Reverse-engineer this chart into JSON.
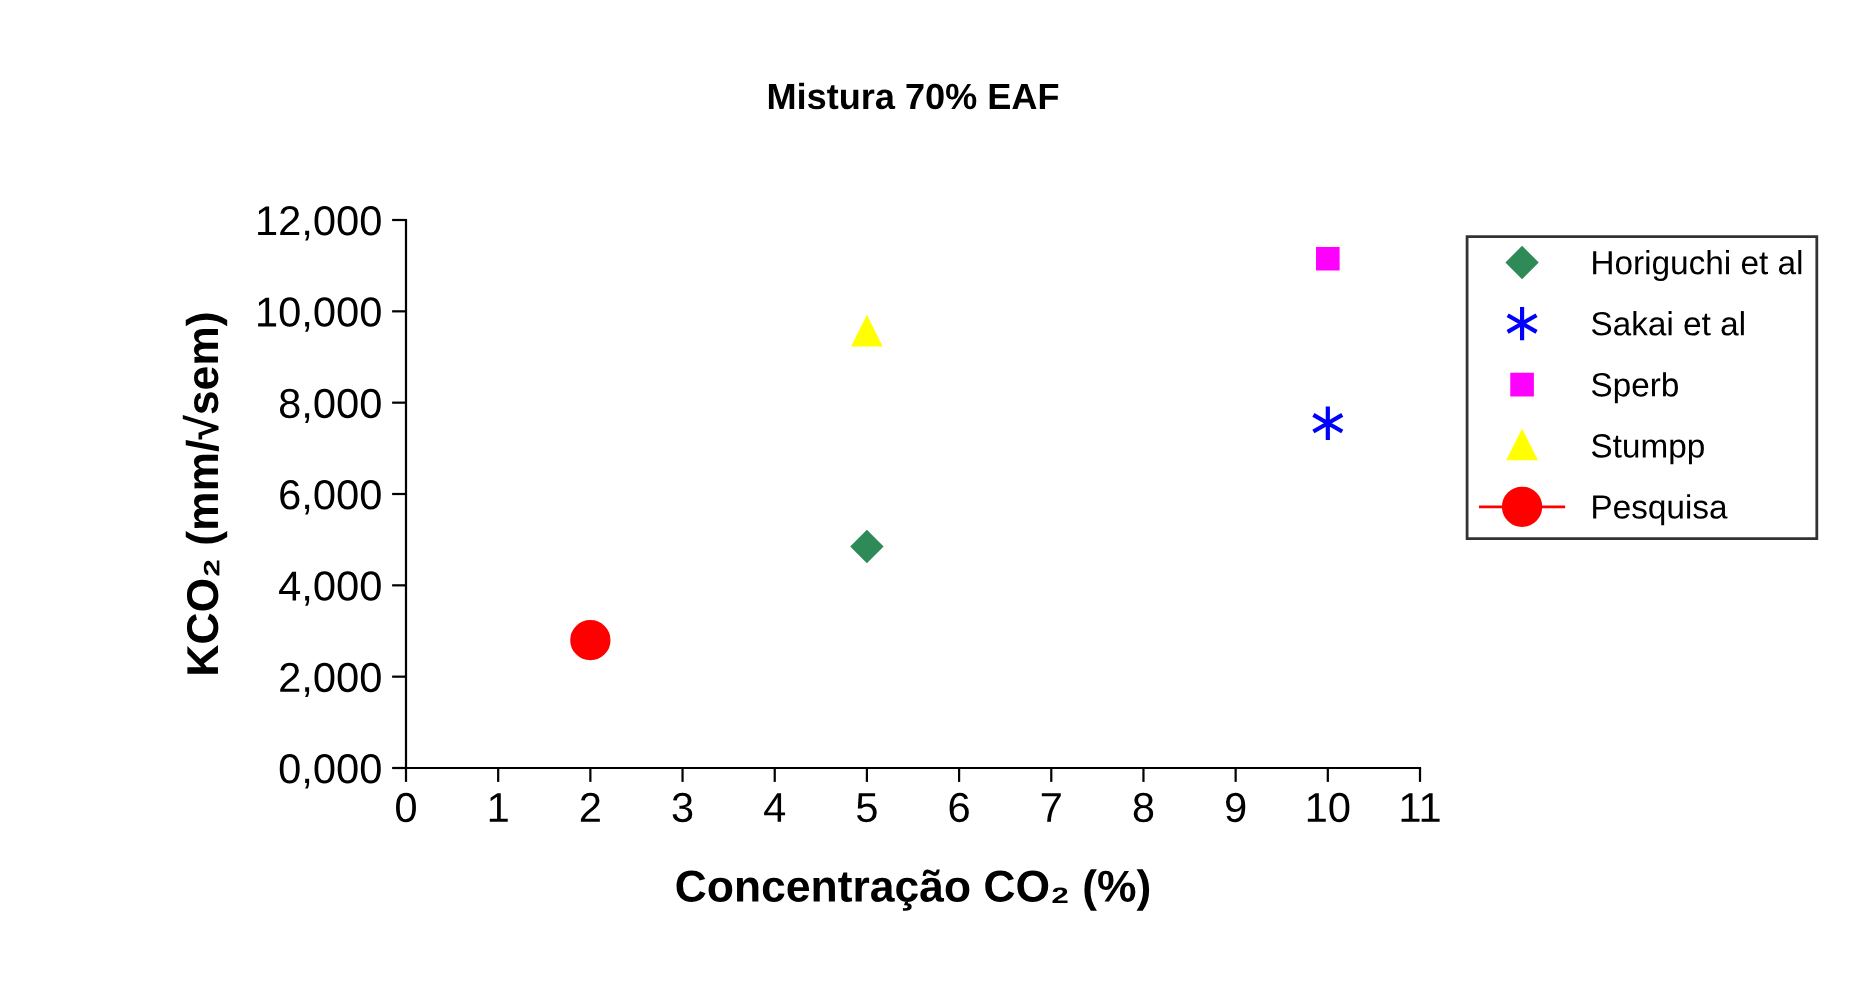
{
  "chart_data": {
    "type": "scatter",
    "title": "Mistura 70% EAF",
    "xlabel": "Concentração CO₂ (%)",
    "ylabel": "KCO₂ (mm/√sem)",
    "xlim": [
      0,
      11
    ],
    "xticks": [
      0,
      1,
      2,
      3,
      4,
      5,
      6,
      7,
      8,
      9,
      10,
      11
    ],
    "ylim": [
      0,
      12000
    ],
    "yticks": [
      {
        "value": 0,
        "label": "0,000"
      },
      {
        "value": 2000,
        "label": "2,000"
      },
      {
        "value": 4000,
        "label": "4,000"
      },
      {
        "value": 6000,
        "label": "6,000"
      },
      {
        "value": 8000,
        "label": "8,000"
      },
      {
        "value": 10000,
        "label": "10,000"
      },
      {
        "value": 12000,
        "label": "12,000"
      }
    ],
    "grid": false,
    "legend": "right",
    "series": [
      {
        "name": "Horiguchi et al",
        "color": "#2e8b57",
        "marker": "diamond",
        "x": [
          5
        ],
        "values": [
          4850
        ]
      },
      {
        "name": "Sakai et al",
        "color": "#0000ff",
        "marker": "cross",
        "x": [
          10
        ],
        "values": [
          7550
        ]
      },
      {
        "name": "Sperb",
        "color": "#ff00ff",
        "marker": "square",
        "x": [
          10
        ],
        "values": [
          11150
        ]
      },
      {
        "name": "Stumpp",
        "color": "#ffff00",
        "marker": "triangle",
        "x": [
          5
        ],
        "values": [
          9550
        ]
      },
      {
        "name": "Pesquisa",
        "type": "line",
        "color": "#ff0000",
        "marker": "circle",
        "x": [
          2
        ],
        "values": [
          2800
        ]
      }
    ]
  }
}
